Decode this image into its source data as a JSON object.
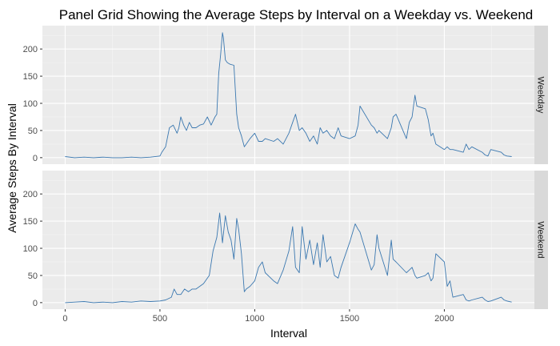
{
  "chart_data": {
    "type": "line",
    "title": "Panel Grid Showing the Average Steps by Interval on a Weekday vs. Weekend",
    "xlabel": "Interval",
    "ylabel": "Average Steps By Interval",
    "xlim": [
      -120,
      2475
    ],
    "ylim": [
      -12,
      243
    ],
    "x_ticks": [
      0,
      500,
      1000,
      1500,
      2000
    ],
    "y_ticks": [
      0,
      50,
      100,
      150,
      200
    ],
    "grid": true,
    "line_color": "#3b78b0",
    "panel_background": "#ebebeb",
    "strip_background": "#d9d9d9",
    "panels": [
      {
        "name": "Weekday",
        "x": [
          0,
          50,
          100,
          150,
          200,
          250,
          300,
          350,
          400,
          450,
          500,
          510,
          530,
          550,
          570,
          590,
          600,
          610,
          625,
          640,
          655,
          670,
          690,
          710,
          730,
          750,
          770,
          790,
          800,
          810,
          820,
          830,
          835,
          845,
          855,
          870,
          890,
          905,
          915,
          930,
          945,
          955,
          975,
          1000,
          1020,
          1040,
          1055,
          1100,
          1120,
          1150,
          1180,
          1200,
          1215,
          1235,
          1250,
          1270,
          1290,
          1310,
          1330,
          1345,
          1360,
          1380,
          1400,
          1420,
          1440,
          1455,
          1500,
          1530,
          1545,
          1555,
          1615,
          1630,
          1645,
          1655,
          1700,
          1720,
          1730,
          1745,
          1800,
          1815,
          1830,
          1845,
          1855,
          1900,
          1915,
          1930,
          1940,
          1955,
          2000,
          2015,
          2030,
          2045,
          2100,
          2115,
          2130,
          2145,
          2200,
          2215,
          2230,
          2245,
          2300,
          2315,
          2330,
          2355
        ],
        "y": [
          2,
          0,
          1,
          0,
          1,
          0,
          0,
          1,
          0,
          1,
          3,
          10,
          20,
          55,
          60,
          45,
          55,
          75,
          60,
          50,
          65,
          55,
          55,
          60,
          62,
          75,
          60,
          75,
          80,
          155,
          190,
          230,
          220,
          180,
          175,
          172,
          170,
          80,
          55,
          40,
          20,
          25,
          35,
          45,
          30,
          30,
          35,
          30,
          35,
          25,
          45,
          65,
          80,
          50,
          55,
          45,
          30,
          40,
          25,
          55,
          45,
          50,
          40,
          35,
          55,
          40,
          35,
          40,
          60,
          95,
          60,
          55,
          45,
          50,
          35,
          55,
          75,
          80,
          35,
          65,
          75,
          115,
          95,
          90,
          70,
          40,
          45,
          25,
          15,
          20,
          15,
          15,
          10,
          25,
          15,
          20,
          10,
          5,
          3,
          15,
          10,
          5,
          3,
          2
        ]
      },
      {
        "name": "Weekend",
        "x": [
          0,
          50,
          100,
          150,
          200,
          250,
          300,
          350,
          400,
          450,
          500,
          530,
          560,
          575,
          590,
          610,
          630,
          650,
          670,
          690,
          710,
          730,
          760,
          780,
          800,
          815,
          830,
          845,
          860,
          875,
          890,
          905,
          915,
          930,
          945,
          955,
          975,
          1000,
          1020,
          1040,
          1055,
          1100,
          1120,
          1150,
          1180,
          1200,
          1215,
          1235,
          1250,
          1270,
          1290,
          1310,
          1330,
          1345,
          1360,
          1380,
          1400,
          1420,
          1440,
          1455,
          1500,
          1530,
          1545,
          1555,
          1615,
          1630,
          1645,
          1655,
          1700,
          1720,
          1730,
          1745,
          1800,
          1815,
          1830,
          1845,
          1855,
          1900,
          1915,
          1930,
          1940,
          1955,
          2000,
          2015,
          2030,
          2045,
          2100,
          2115,
          2130,
          2145,
          2200,
          2215,
          2230,
          2245,
          2300,
          2315,
          2330,
          2355
        ],
        "y": [
          0,
          1,
          2,
          0,
          1,
          0,
          2,
          1,
          3,
          2,
          3,
          5,
          10,
          25,
          15,
          15,
          25,
          20,
          25,
          25,
          30,
          35,
          50,
          95,
          120,
          165,
          110,
          160,
          130,
          115,
          80,
          155,
          135,
          90,
          20,
          25,
          30,
          40,
          65,
          75,
          55,
          40,
          35,
          60,
          95,
          140,
          65,
          55,
          140,
          80,
          115,
          70,
          110,
          65,
          125,
          75,
          85,
          50,
          45,
          65,
          110,
          145,
          135,
          130,
          60,
          70,
          125,
          100,
          50,
          115,
          80,
          75,
          55,
          60,
          65,
          50,
          45,
          50,
          55,
          40,
          45,
          90,
          75,
          30,
          40,
          10,
          15,
          5,
          3,
          5,
          10,
          5,
          2,
          3,
          10,
          5,
          3,
          1
        ]
      }
    ]
  }
}
